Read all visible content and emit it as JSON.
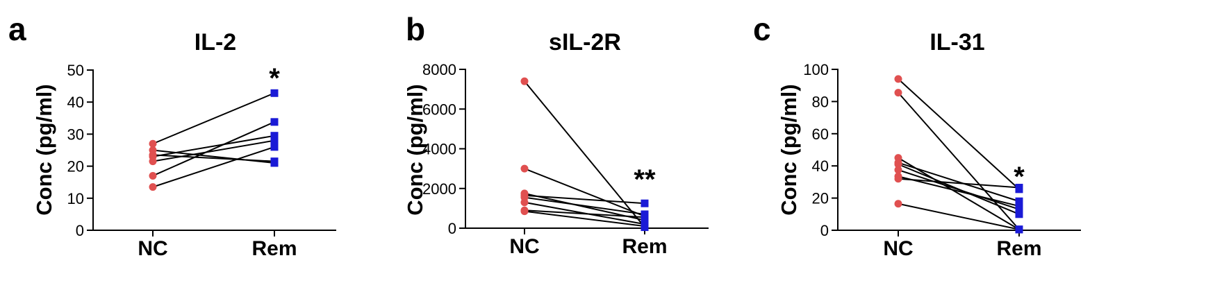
{
  "chart_data": [
    {
      "type": "line",
      "panel_label": "a",
      "title": "IL-2",
      "ylabel": "Conc (pg/ml)",
      "xlabel": "",
      "categories": [
        "NC",
        "Rem"
      ],
      "ylim": [
        0,
        50
      ],
      "yticks": [
        0,
        10,
        20,
        30,
        40,
        50
      ],
      "significance": "*",
      "marker_colors": {
        "NC": "#e05050",
        "Rem": "#1a1ad6"
      },
      "pairs": [
        [
          27,
          42.8
        ],
        [
          25,
          21
        ],
        [
          23.5,
          21.5
        ],
        [
          23,
          29.5
        ],
        [
          21.5,
          28
        ],
        [
          17,
          33.8
        ],
        [
          13.5,
          26
        ]
      ]
    },
    {
      "type": "line",
      "panel_label": "b",
      "title": "sIL-2R",
      "ylabel": "Conc (pg/ml)",
      "xlabel": "",
      "categories": [
        "NC",
        "Rem"
      ],
      "ylim": [
        0,
        8000
      ],
      "yticks": [
        0,
        2000,
        4000,
        6000,
        8000
      ],
      "significance": "**",
      "marker_colors": {
        "NC": "#e05050",
        "Rem": "#1a1ad6"
      },
      "pairs": [
        [
          7400,
          50
        ],
        [
          3000,
          600
        ],
        [
          1750,
          400
        ],
        [
          1650,
          1250
        ],
        [
          1550,
          700
        ],
        [
          1300,
          200
        ],
        [
          900,
          550
        ],
        [
          850,
          100
        ]
      ]
    },
    {
      "type": "line",
      "panel_label": "c",
      "title": "IL-31",
      "ylabel": "Conc (pg/ml)",
      "xlabel": "",
      "categories": [
        "NC",
        "Rem"
      ],
      "ylim": [
        0,
        100
      ],
      "yticks": [
        0,
        20,
        40,
        60,
        80,
        100
      ],
      "significance": "*",
      "marker_colors": {
        "NC": "#e05050",
        "Rem": "#1a1ad6"
      },
      "pairs": [
        [
          94,
          25.5
        ],
        [
          85.5,
          0.5
        ],
        [
          45,
          0.5
        ],
        [
          42,
          18
        ],
        [
          41,
          10
        ],
        [
          37.5,
          13
        ],
        [
          33.5,
          15
        ],
        [
          32,
          26.5
        ],
        [
          16.5,
          0.5
        ]
      ]
    }
  ]
}
